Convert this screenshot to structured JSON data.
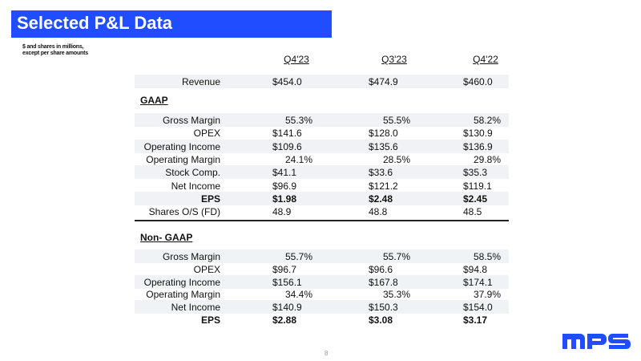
{
  "header": {
    "title": "Selected P&L Data",
    "note_line1": "$ and shares in millions,",
    "note_line2": "except per share amounts"
  },
  "columns": [
    "Q4'23",
    "Q3'23",
    "Q4'22"
  ],
  "revenue": {
    "label": "Revenue",
    "values": [
      "$454.0",
      "$474.9",
      "$460.0"
    ]
  },
  "gaap": {
    "title": "GAAP",
    "rows": [
      {
        "label": "Gross Margin",
        "values": [
          "55.3%",
          "55.5%",
          "58.2%"
        ]
      },
      {
        "label": "OPEX",
        "values": [
          "$141.6",
          "$128.0",
          "$130.9"
        ]
      },
      {
        "label": "Operating Income",
        "values": [
          "$109.6",
          "$135.6",
          "$136.9"
        ]
      },
      {
        "label": "Operating Margin",
        "values": [
          "24.1%",
          "28.5%",
          "29.8%"
        ]
      },
      {
        "label": "Stock Comp.",
        "values": [
          "$41.1",
          "$33.6",
          "$35.3"
        ]
      },
      {
        "label": "Net Income",
        "values": [
          "$96.9",
          "$121.2",
          "$119.1"
        ]
      },
      {
        "label": "EPS",
        "values": [
          "$1.98",
          "$2.48",
          "$2.45"
        ],
        "bold": true
      },
      {
        "label": "Shares O/S (FD)",
        "values": [
          "48.9",
          "48.8",
          "48.5"
        ]
      }
    ]
  },
  "non_gaap": {
    "title": "Non- GAAP",
    "rows": [
      {
        "label": "Gross Margin",
        "values": [
          "55.7%",
          "55.7%",
          "58.5%"
        ]
      },
      {
        "label": "OPEX",
        "values": [
          "$96.7",
          "$96.6",
          "$94.8"
        ]
      },
      {
        "label": "Operating Income",
        "values": [
          "$156.1",
          "$167.8",
          "$174.1"
        ]
      },
      {
        "label": "Operating Margin",
        "values": [
          "34.4%",
          "35.3%",
          "37.9%"
        ]
      },
      {
        "label": "Net Income",
        "values": [
          "$140.9",
          "$150.3",
          "$154.0"
        ]
      },
      {
        "label": "EPS",
        "values": [
          "$2.88",
          "$3.08",
          "$3.17"
        ],
        "bold": true
      }
    ]
  },
  "footer": {
    "page_number": "8",
    "logo_text": "MPS"
  },
  "colors": {
    "brand": "#1f4dff",
    "shade": "#f1f2f5"
  }
}
